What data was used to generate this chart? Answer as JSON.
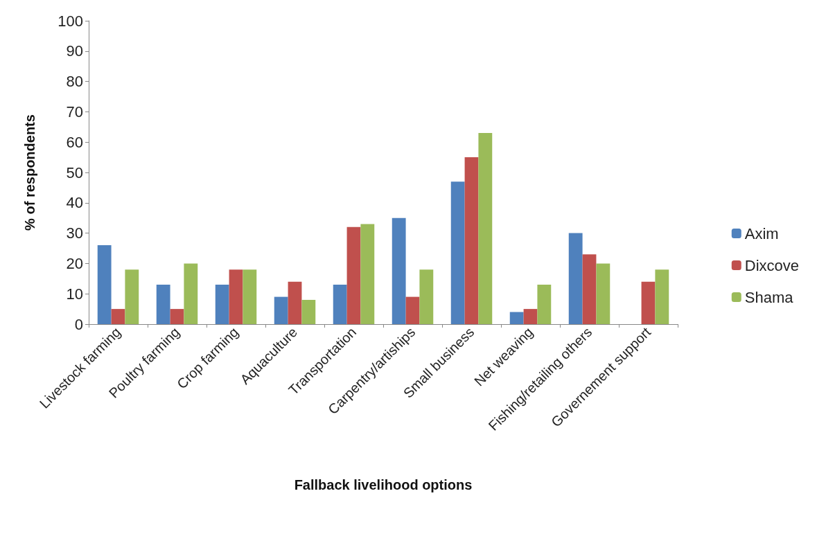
{
  "chart_data": {
    "type": "bar",
    "xlabel": "Fallback livelihood options",
    "ylabel": "% of respondents",
    "categories": [
      "Livestock farming",
      "Poultry farming",
      "Crop farming",
      "Aquaculture",
      "Transportation",
      "Carpentry/artiships",
      "Small business",
      "Net weaving",
      "Fishing/retailing others",
      "Governement support"
    ],
    "series": [
      {
        "name": "Axim",
        "color": "#4f81bd",
        "values": [
          26,
          13,
          13,
          9,
          13,
          35,
          47,
          4,
          30,
          0
        ]
      },
      {
        "name": "Dixcove",
        "color": "#c0504d",
        "values": [
          5,
          5,
          18,
          14,
          32,
          9,
          55,
          5,
          23,
          14
        ]
      },
      {
        "name": "Shama",
        "color": "#9bbb59",
        "values": [
          18,
          20,
          18,
          8,
          33,
          18,
          63,
          13,
          20,
          18
        ]
      }
    ],
    "ylim": [
      0,
      100
    ],
    "yticks": [
      0,
      10,
      20,
      30,
      40,
      50,
      60,
      70,
      80,
      90,
      100
    ],
    "grid": false,
    "legend": "right"
  }
}
